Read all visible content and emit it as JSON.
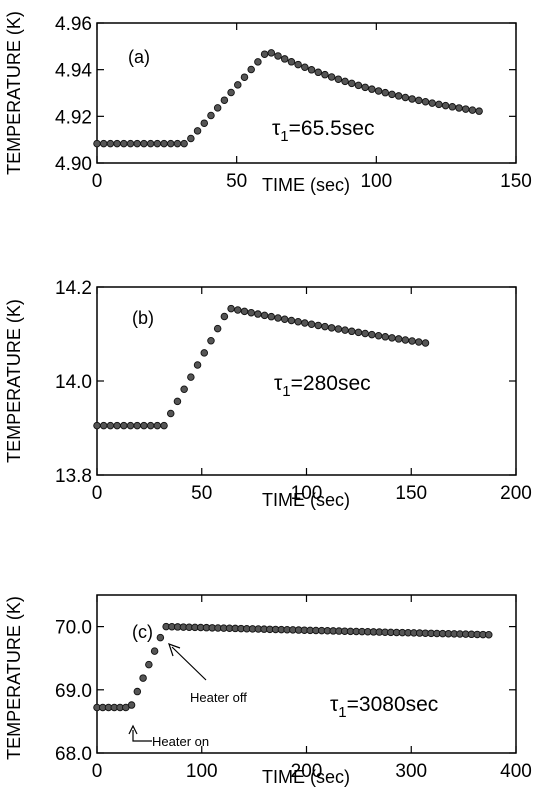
{
  "chart_data": [
    {
      "type": "scatter",
      "panel_label": "(a)",
      "xlabel": "TIME (sec)",
      "ylabel": "TEMPERATURE (K)",
      "xlim": [
        0,
        150
      ],
      "ylim": [
        4.9,
        4.96
      ],
      "xticks": [
        "0",
        "50",
        "100",
        "150"
      ],
      "yticks": [
        "4.90",
        "4.92",
        "4.94",
        "4.96"
      ],
      "annotation": {
        "prefix": "τ",
        "sub": "1",
        "suffix": "=65.5sec"
      },
      "series": [
        {
          "x": [
            0,
            32,
            61,
            138
          ],
          "y": [
            4.9083,
            4.9083,
            4.948,
            4.922
          ],
          "decay_tau": 65.5
        }
      ]
    },
    {
      "type": "scatter",
      "panel_label": "(b)",
      "xlabel": "TIME (sec)",
      "ylabel": "TEMPERATURE (K)",
      "xlim": [
        0,
        200
      ],
      "ylim": [
        13.8,
        14.2
      ],
      "xticks": [
        "0",
        "50",
        "100",
        "150",
        "200"
      ],
      "yticks": [
        "13.8",
        "14.0",
        "14.2"
      ],
      "annotation": {
        "prefix": "τ",
        "sub": "1",
        "suffix": "=280sec"
      },
      "series": [
        {
          "x": [
            0,
            32,
            63,
            158
          ],
          "y": [
            13.905,
            13.905,
            14.155,
            14.08
          ],
          "decay_tau": 280
        }
      ]
    },
    {
      "type": "scatter",
      "panel_label": "(c)",
      "xlabel": "TIME (sec)",
      "ylabel": "TEMPERATURE (K)",
      "xlim": [
        0,
        400
      ],
      "ylim": [
        68.0,
        70.5
      ],
      "xticks": [
        "0",
        "100",
        "200",
        "300",
        "400"
      ],
      "yticks": [
        "68.0",
        "69.0",
        "70.0"
      ],
      "annotation": {
        "prefix": "τ",
        "sub": "1",
        "suffix": "=3080sec"
      },
      "callouts": {
        "heater_on": "Heater on",
        "heater_off": "Heater off"
      },
      "series": [
        {
          "x": [
            0,
            32,
            65,
            378
          ],
          "y": [
            68.72,
            68.72,
            70.0,
            69.87
          ],
          "decay_tau": 3080
        }
      ]
    }
  ]
}
